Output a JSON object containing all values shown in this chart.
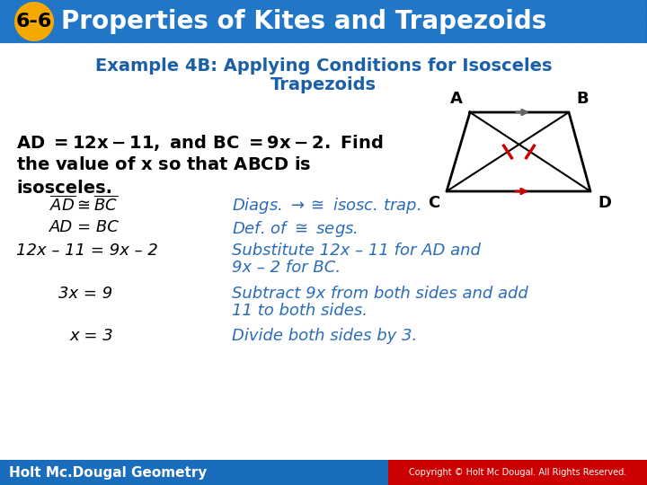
{
  "header_bg_color": "#1a6dbd",
  "header_text": "Properties of Kites and Trapezoids",
  "header_badge": "6-6",
  "header_badge_bg": "#f5a800",
  "subtitle_color": "#1a5fa8",
  "body_bg_color": "#ffffff",
  "blue_text_color": "#2b6cb8",
  "footer_text": "Holt Mc.Dougal Geometry",
  "footer_bg_color": "#1a6dbd",
  "copyright_text": "Copyright © Holt Mc Dougal. All Rights Reserved.",
  "copyright_bg_color": "#cc0000"
}
